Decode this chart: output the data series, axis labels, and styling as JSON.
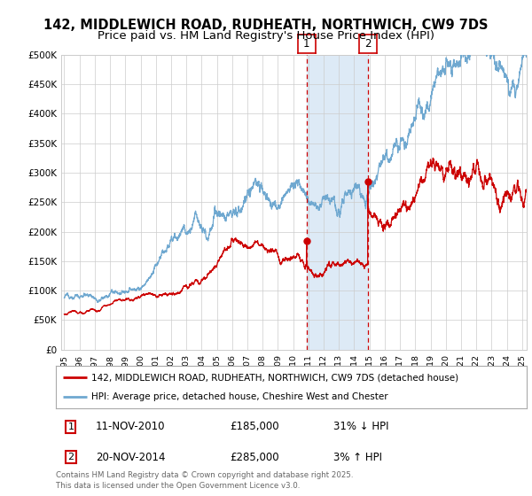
{
  "title_line1": "142, MIDDLEWICH ROAD, RUDHEATH, NORTHWICH, CW9 7DS",
  "title_line2": "Price paid vs. HM Land Registry's House Price Index (HPI)",
  "legend_line1": "142, MIDDLEWICH ROAD, RUDHEATH, NORTHWICH, CW9 7DS (detached house)",
  "legend_line2": "HPI: Average price, detached house, Cheshire West and Chester",
  "footnote": "Contains HM Land Registry data © Crown copyright and database right 2025.\nThis data is licensed under the Open Government Licence v3.0.",
  "transaction1_date": "11-NOV-2010",
  "transaction1_price": "£185,000",
  "transaction1_hpi": "31% ↓ HPI",
  "transaction2_date": "20-NOV-2014",
  "transaction2_price": "£285,000",
  "transaction2_hpi": "3% ↑ HPI",
  "sale1_year": 2010.87,
  "sale1_price": 185000,
  "sale2_year": 2014.89,
  "sale2_price": 285000,
  "year_start": 1995,
  "year_end": 2025,
  "ylim_min": 0,
  "ylim_max": 500000,
  "ytick_step": 50000,
  "red_line_color": "#cc0000",
  "blue_line_color": "#6fa8d0",
  "dashed_line_color": "#cc0000",
  "shade_color": "#ddeaf6",
  "background_color": "#ffffff",
  "grid_color": "#cccccc",
  "title_fontsize": 10.5,
  "subtitle_fontsize": 9.5
}
